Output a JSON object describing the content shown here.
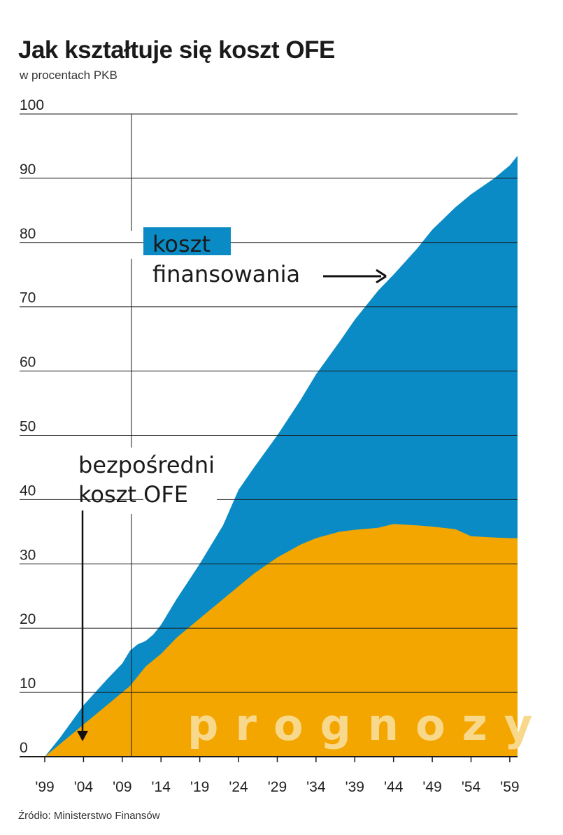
{
  "title": "Jak kształtuje się koszt OFE",
  "subtitle": "w procentach PKB",
  "source": "Źródło: Ministerstwo Finansów",
  "colors": {
    "total": "#0a8bc5",
    "direct": "#f4a600",
    "watermark": "#f8d98c",
    "grid": "#1a1a1a"
  },
  "chart_data": {
    "type": "area",
    "title": "Jak kształtuje się koszt OFE",
    "subtitle": "w procentach PKB",
    "ylim": [
      0,
      100
    ],
    "yticks": [
      "0",
      "10",
      "20",
      "30",
      "40",
      "50",
      "60",
      "70",
      "80",
      "90",
      "100"
    ],
    "xlim": [
      1999,
      2060
    ],
    "xticks": [
      "'99",
      "'04",
      "'09",
      "'14",
      "'19",
      "'24",
      "'29",
      "'34",
      "'39",
      "'44",
      "'49",
      "'54",
      "'59"
    ],
    "x": [
      1999,
      2001,
      2004,
      2007,
      2009,
      2010,
      2011,
      2012,
      2013,
      2014,
      2016,
      2019,
      2022,
      2024,
      2026,
      2029,
      2032,
      2034,
      2037,
      2039,
      2042,
      2044,
      2047,
      2049,
      2052,
      2054,
      2057,
      2059,
      2060
    ],
    "series": [
      {
        "name": "koszt finansowania",
        "values": [
          0,
          3,
          8,
          12,
          14.5,
          16.5,
          17.5,
          18,
          19,
          20.5,
          24.5,
          30,
          36,
          41.5,
          45,
          50,
          55.5,
          59.5,
          64.5,
          68,
          72.5,
          75,
          79,
          82,
          85.5,
          87.5,
          90,
          92,
          93.5
        ]
      },
      {
        "name": "bezpośredni koszt OFE",
        "values": [
          0,
          2,
          5,
          8,
          10,
          11,
          12.5,
          14,
          15,
          16,
          18.5,
          21.5,
          24.5,
          26.5,
          28.5,
          31,
          33,
          34,
          35,
          35.3,
          35.6,
          36.2,
          36,
          35.8,
          35.4,
          34.3,
          34.1,
          34,
          34
        ]
      }
    ],
    "annotations": {
      "total_label_line1": "koszt",
      "total_label_line2": "finansowania",
      "direct_label_line1": "bezpośredni",
      "direct_label_line2": "koszt OFE",
      "forecast": "prognozy"
    }
  }
}
